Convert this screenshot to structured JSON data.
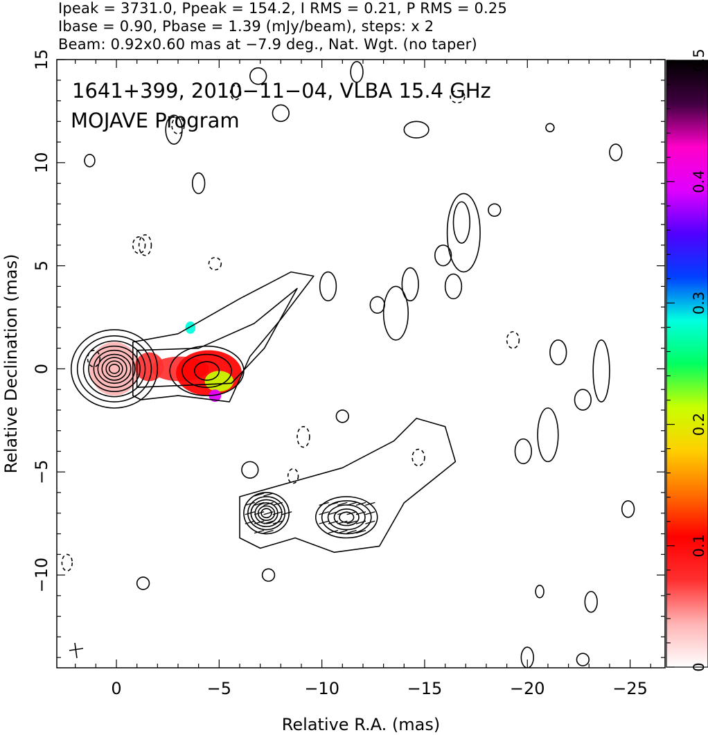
{
  "header": {
    "line1": "Ipeak = 3731.0, Ppeak = 154.2, I RMS = 0.21, P RMS = 0.25",
    "line2": "Ibase = 0.90, Pbase = 1.39 (mJy/beam), steps: x 2",
    "line3": "Beam: 0.92x0.60 mas at −7.9 deg., Nat. Wgt. (no taper)"
  },
  "chart_data": {
    "type": "heatmap",
    "title": "1641+399, 2010−11−04, VLBA 15.4 GHz",
    "subtitle": "MOJAVE Program",
    "xlabel": "Relative R.A. (mas)",
    "ylabel": "Relative Declination (mas)",
    "xlim": [
      2.9,
      -26.7
    ],
    "ylim": [
      -14.5,
      15
    ],
    "x_ticks": [
      0,
      -5,
      -10,
      -15,
      -20,
      -25
    ],
    "x_tick_labels": [
      "0",
      "−5",
      "−10",
      "−15",
      "−20",
      "−25"
    ],
    "y_ticks": [
      -10,
      -5,
      0,
      5,
      10,
      15
    ],
    "y_tick_labels": [
      "−10",
      "−5",
      "0",
      "5",
      "10",
      "15"
    ],
    "colorbar": {
      "range": [
        0,
        0.5
      ],
      "ticks": [
        0,
        0.1,
        0.2,
        0.3,
        0.4,
        0.5
      ],
      "tick_labels": [
        "0",
        "0.1",
        "0.2",
        "0.3",
        "0.4",
        "0.5"
      ],
      "colors": [
        "#ffffff",
        "#ffb4b4",
        "#ff3030",
        "#ff0000",
        "#ff7000",
        "#ffd000",
        "#c8ff00",
        "#00ff60",
        "#00ffe0",
        "#0040ff",
        "#5000ff",
        "#e000ff",
        "#ff00c8",
        "#400040",
        "#000000"
      ]
    },
    "beam": {
      "major_mas": 0.92,
      "minor_mas": 0.6,
      "pa_deg": -7.9
    },
    "peak_position": [
      0,
      0
    ],
    "image_centroid": [
      -7.2,
      -7.1
    ],
    "image_duplicate_note": "",
    "colored_regions": [
      {
        "center": [
          0.1,
          0.0
        ],
        "rx": 1.2,
        "ry": 1.3,
        "value": 0.05
      },
      {
        "center": [
          -1.6,
          0.1
        ],
        "rx": 0.7,
        "ry": 0.7,
        "value": 0.08
      },
      {
        "center": [
          -3.1,
          0.0
        ],
        "rx": 1.4,
        "ry": 0.6,
        "value": 0.07
      },
      {
        "center": [
          -4.5,
          -0.2
        ],
        "rx": 1.6,
        "ry": 1.1,
        "value": 0.1
      },
      {
        "center": [
          -5.0,
          -0.6
        ],
        "rx": 0.7,
        "ry": 0.5,
        "value": 0.2
      },
      {
        "center": [
          -4.8,
          -1.3
        ],
        "rx": 0.3,
        "ry": 0.3,
        "value": 0.38
      },
      {
        "center": [
          -3.6,
          2.0
        ],
        "rx": 0.25,
        "ry": 0.3,
        "value": 0.3
      }
    ],
    "contour_groups": [
      {
        "center": [
          0.1,
          0.0
        ],
        "levels": [
          [
            2.1,
            1.9
          ],
          [
            1.8,
            1.6
          ],
          [
            1.5,
            1.35
          ],
          [
            1.25,
            1.1
          ],
          [
            1.0,
            0.9
          ],
          [
            0.8,
            0.7
          ],
          [
            0.6,
            0.55
          ],
          [
            0.4,
            0.38
          ],
          [
            0.25,
            0.22
          ]
        ]
      },
      {
        "center": [
          -4.4,
          -0.1
        ],
        "levels": [
          [
            1.8,
            1.2
          ],
          [
            1.2,
            0.8
          ],
          [
            0.6,
            0.45
          ]
        ]
      },
      {
        "center": [
          -7.3,
          -7.0
        ],
        "levels": [
          [
            1.1,
            1.0
          ],
          [
            0.9,
            0.8
          ],
          [
            0.75,
            0.65
          ],
          [
            0.55,
            0.5
          ],
          [
            0.4,
            0.35
          ],
          [
            0.25,
            0.22
          ]
        ]
      },
      {
        "center": [
          -11.2,
          -7.2
        ],
        "levels": [
          [
            1.5,
            1.0
          ],
          [
            1.2,
            0.8
          ],
          [
            0.9,
            0.6
          ],
          [
            0.6,
            0.4
          ],
          [
            0.35,
            0.25
          ]
        ]
      }
    ],
    "isolated_contours": [
      [
        -13.6,
        2.7,
        0.6,
        1.3
      ],
      [
        -14.3,
        4.1,
        0.4,
        0.8
      ],
      [
        -16.8,
        7.1,
        0.4,
        1.0
      ],
      [
        -16.9,
        6.6,
        0.8,
        1.9
      ],
      [
        -16.4,
        4.0,
        0.4,
        0.6
      ],
      [
        -15.9,
        5.5,
        0.4,
        0.5
      ],
      [
        -12.7,
        3.1,
        0.35,
        0.4
      ],
      [
        -10.3,
        4.0,
        0.4,
        0.7
      ],
      [
        -21.5,
        0.8,
        0.4,
        0.6
      ],
      [
        -23.6,
        -0.1,
        0.4,
        1.5
      ],
      [
        -22.7,
        -1.5,
        0.4,
        0.5
      ],
      [
        -24.9,
        -6.8,
        0.3,
        0.4
      ],
      [
        -23.1,
        -11.3,
        0.3,
        0.5
      ],
      [
        -20.0,
        -14.0,
        0.3,
        0.5
      ],
      [
        -21.0,
        -3.2,
        0.5,
        1.3
      ],
      [
        -19.8,
        -4.0,
        0.4,
        0.6
      ],
      [
        -1.3,
        -10.4,
        0.3,
        0.3
      ],
      [
        -7.4,
        -10.0,
        0.3,
        0.3
      ],
      [
        -6.5,
        -4.9,
        0.4,
        0.4
      ],
      [
        -11.0,
        -2.3,
        0.3,
        0.3
      ],
      [
        -2.8,
        11.6,
        0.4,
        0.7
      ],
      [
        -8.0,
        12.4,
        0.4,
        0.4
      ],
      [
        -11.7,
        14.4,
        0.3,
        0.5
      ],
      [
        -14.6,
        11.6,
        0.6,
        0.4
      ],
      [
        -24.3,
        10.5,
        0.3,
        0.4
      ],
      [
        -18.4,
        7.7,
        0.3,
        0.3
      ],
      [
        -20.6,
        -10.8,
        0.2,
        0.3
      ],
      [
        -22.7,
        -14.1,
        0.3,
        0.3
      ],
      [
        -4.0,
        9.0,
        0.3,
        0.5
      ],
      [
        -6.9,
        14.2,
        0.4,
        0.4
      ],
      [
        1.3,
        10.1,
        0.25,
        0.3
      ],
      [
        -21.1,
        11.7,
        0.2,
        0.2
      ]
    ],
    "dashed_contours": [
      [
        -1.1,
        6.0,
        0.3,
        0.4
      ],
      [
        -1.4,
        6.0,
        0.3,
        0.5
      ],
      [
        -4.8,
        5.1,
        0.3,
        0.3
      ],
      [
        1.1,
        0.5,
        0.3,
        0.4
      ],
      [
        -9.1,
        -3.3,
        0.3,
        0.5
      ],
      [
        -8.6,
        -5.2,
        0.25,
        0.35
      ],
      [
        -14.7,
        -4.3,
        0.3,
        0.4
      ],
      [
        -19.3,
        1.4,
        0.3,
        0.4
      ],
      [
        -3.0,
        11.8,
        0.3,
        0.4
      ],
      [
        -5.8,
        13.4,
        0.25,
        0.35
      ],
      [
        2.4,
        -9.4,
        0.25,
        0.4
      ],
      [
        -16.6,
        13.2,
        0.35,
        0.3
      ]
    ],
    "vectors_region": [
      [
        -6.5,
        -6.1
      ],
      [
        -13.0,
        -8.4
      ]
    ]
  }
}
